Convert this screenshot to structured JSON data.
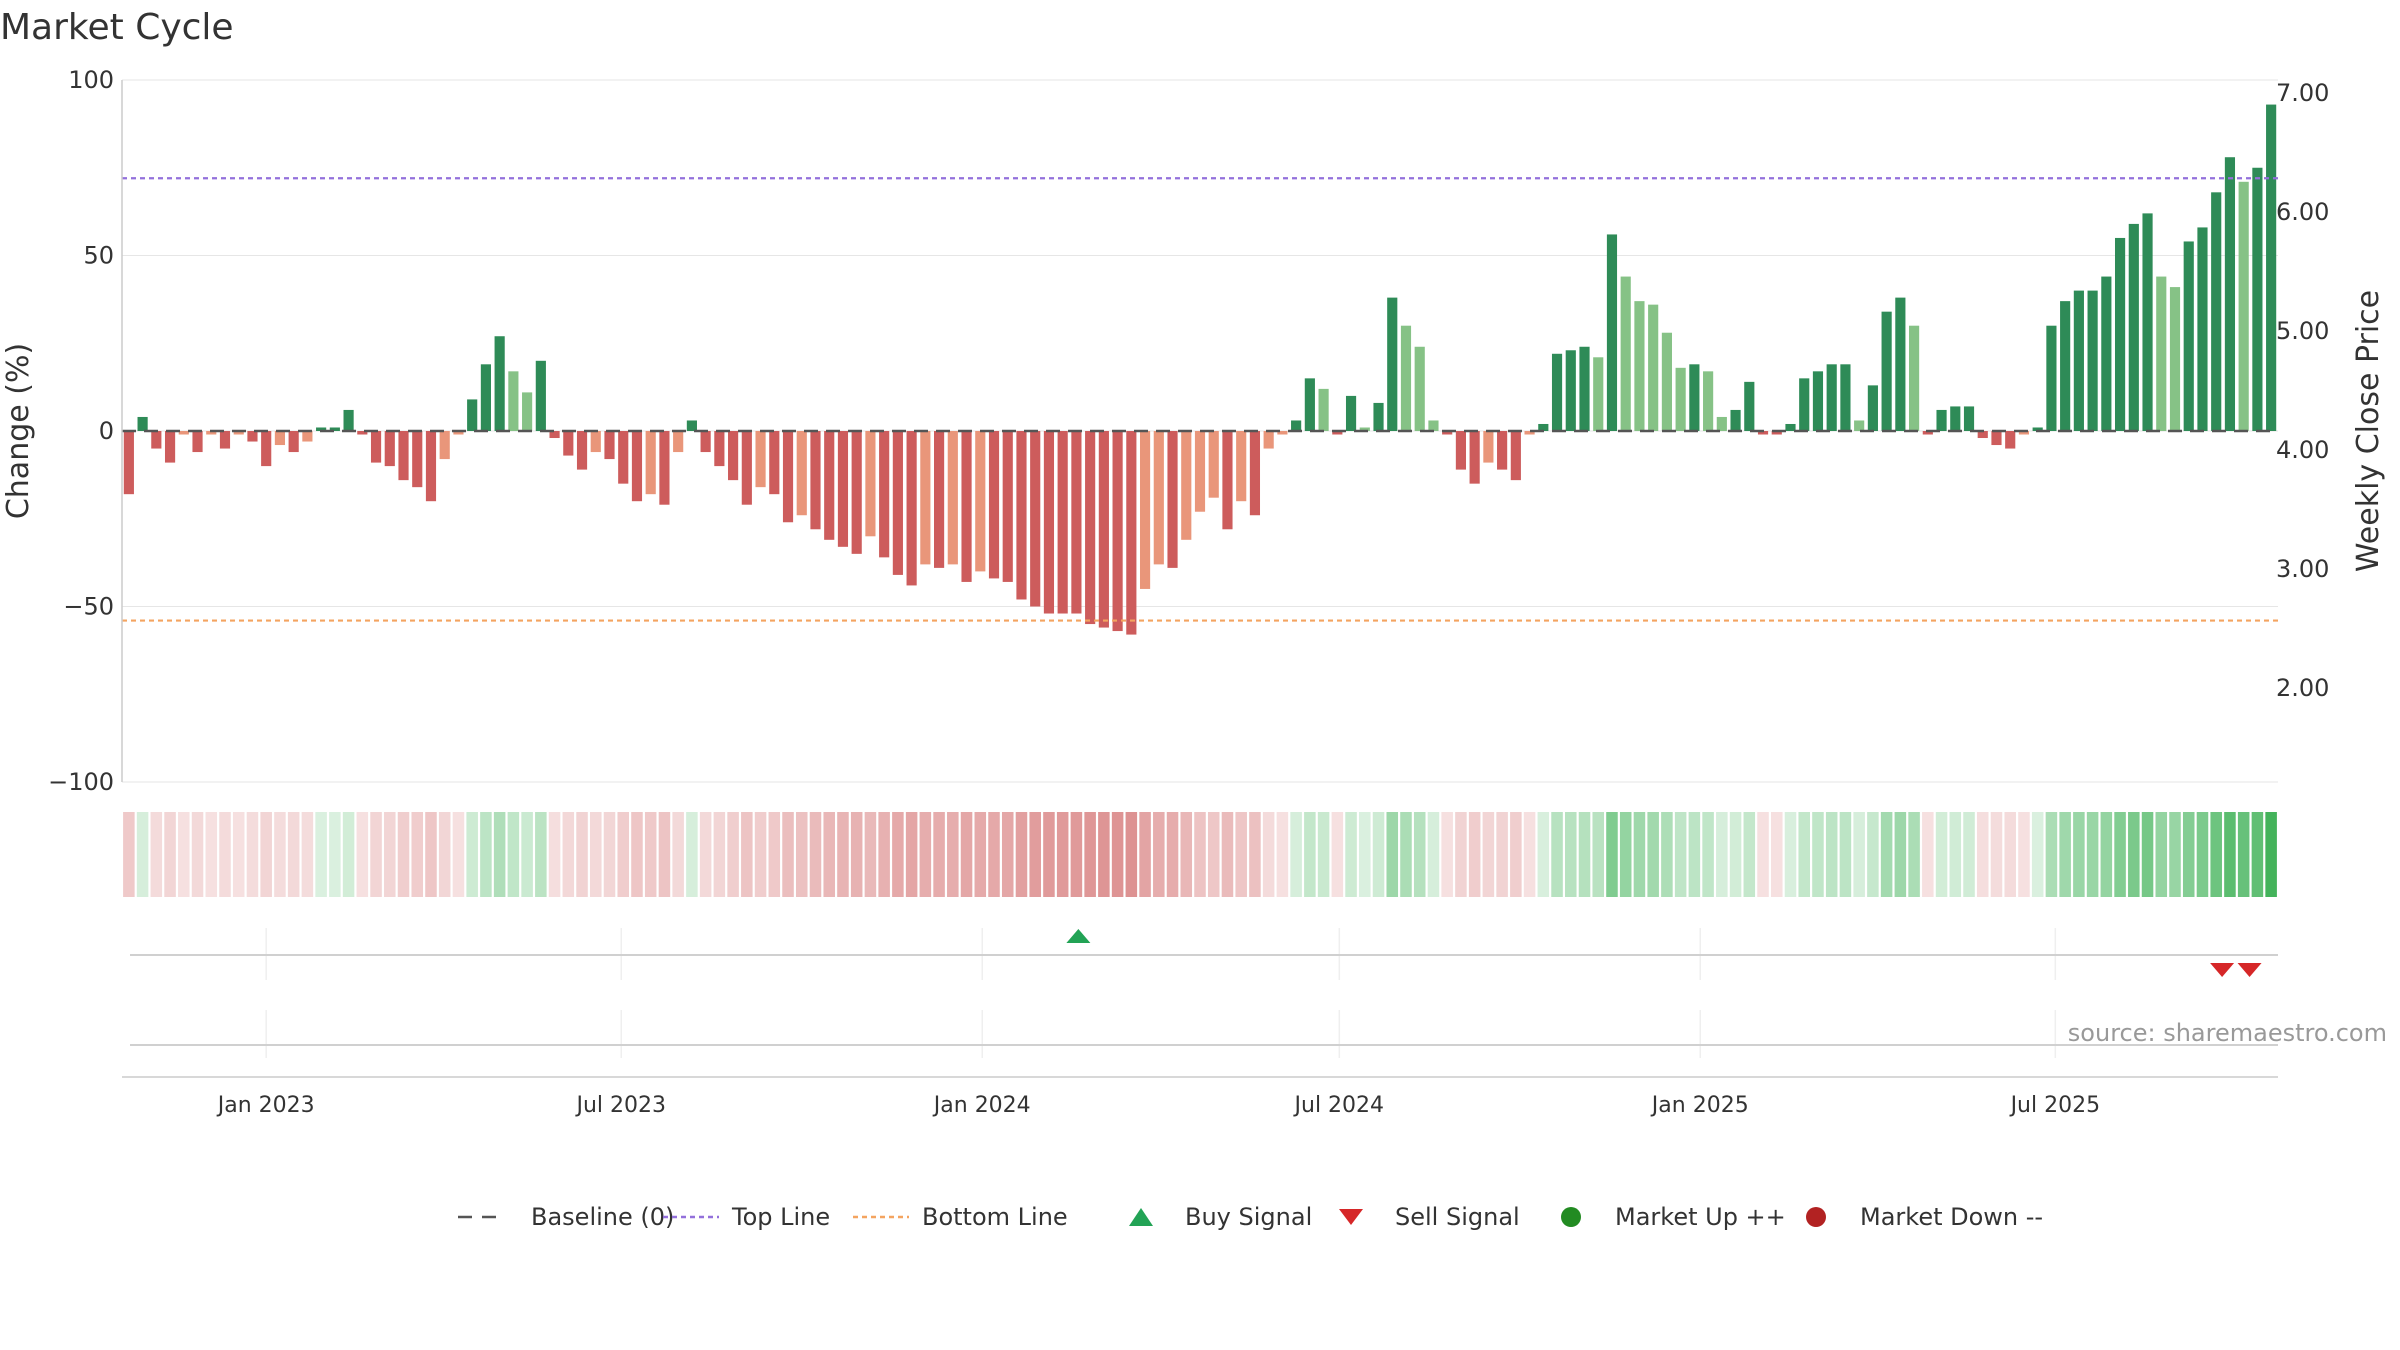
{
  "chart_data": {
    "type": "bar",
    "title": "Market Cycle",
    "ylabel": "Change (%)",
    "y2label": "Weekly Close Price",
    "ylim": [
      -100,
      100
    ],
    "y_ticks": [
      100,
      50,
      0,
      -50,
      -100
    ],
    "y_tick_labels": [
      "100",
      "50",
      "0",
      "−50",
      "−100"
    ],
    "y2lim": [
      1.2,
      7.1
    ],
    "y2_ticks": [
      7.0,
      6.0,
      5.0,
      4.0,
      3.0,
      2.0
    ],
    "y2_tick_labels": [
      "7.00",
      "6.00",
      "5.00",
      "4.00",
      "3.00",
      "2.00"
    ],
    "x_start": "2022-10-23",
    "x_end": "2025-10-19",
    "x_ticks": [
      {
        "date": "2023-01-01",
        "label": "Jan 2023"
      },
      {
        "date": "2023-07-01",
        "label": "Jul 2023"
      },
      {
        "date": "2024-01-01",
        "label": "Jan 2024"
      },
      {
        "date": "2024-07-01",
        "label": "Jul 2024"
      },
      {
        "date": "2025-01-01",
        "label": "Jan 2025"
      },
      {
        "date": "2025-07-01",
        "label": "Jul 2025"
      }
    ],
    "top_line": 72,
    "bottom_line": -54,
    "baseline": 0,
    "colors": {
      "up_strong": "#2e8b57",
      "up_weak": "#86c286",
      "down_strong": "#cd5c5c",
      "down_weak": "#e9967a",
      "top_line": "#9370db",
      "bottom_line": "#f4a460",
      "baseline": "#555555",
      "buy": "#22a355",
      "sell": "#d62728",
      "market_up": "#228b22",
      "market_down": "#b22222",
      "heat_up": "#3cb054",
      "heat_down": "#cd5c5c"
    },
    "weeks": [
      {
        "date": "2022-10-23",
        "value": -18
      },
      {
        "date": "2022-10-30",
        "value": 4
      },
      {
        "date": "2022-11-06",
        "value": -5
      },
      {
        "date": "2022-11-13",
        "value": -9
      },
      {
        "date": "2022-11-20",
        "value": -1
      },
      {
        "date": "2022-11-27",
        "value": -6
      },
      {
        "date": "2022-12-04",
        "value": -1
      },
      {
        "date": "2022-12-11",
        "value": -5
      },
      {
        "date": "2022-12-18",
        "value": -1
      },
      {
        "date": "2022-12-25",
        "value": -3
      },
      {
        "date": "2023-01-01",
        "value": -10
      },
      {
        "date": "2023-01-08",
        "value": -4
      },
      {
        "date": "2023-01-15",
        "value": -6
      },
      {
        "date": "2023-01-22",
        "value": -3
      },
      {
        "date": "2023-01-29",
        "value": 1
      },
      {
        "date": "2023-02-05",
        "value": 1
      },
      {
        "date": "2023-02-12",
        "value": 6
      },
      {
        "date": "2023-02-19",
        "value": -1
      },
      {
        "date": "2023-02-26",
        "value": -9
      },
      {
        "date": "2023-03-05",
        "value": -10
      },
      {
        "date": "2023-03-12",
        "value": -14
      },
      {
        "date": "2023-03-19",
        "value": -16
      },
      {
        "date": "2023-03-26",
        "value": -20
      },
      {
        "date": "2023-04-02",
        "value": -8
      },
      {
        "date": "2023-04-09",
        "value": -1
      },
      {
        "date": "2023-04-16",
        "value": 9
      },
      {
        "date": "2023-04-23",
        "value": 19
      },
      {
        "date": "2023-04-30",
        "value": 27
      },
      {
        "date": "2023-05-07",
        "value": 17
      },
      {
        "date": "2023-05-14",
        "value": 11
      },
      {
        "date": "2023-05-21",
        "value": 20
      },
      {
        "date": "2023-05-28",
        "value": -2
      },
      {
        "date": "2023-06-04",
        "value": -7
      },
      {
        "date": "2023-06-11",
        "value": -11
      },
      {
        "date": "2023-06-18",
        "value": -6
      },
      {
        "date": "2023-06-25",
        "value": -8
      },
      {
        "date": "2023-07-02",
        "value": -15
      },
      {
        "date": "2023-07-09",
        "value": -20
      },
      {
        "date": "2023-07-16",
        "value": -18
      },
      {
        "date": "2023-07-23",
        "value": -21
      },
      {
        "date": "2023-07-30",
        "value": -6
      },
      {
        "date": "2023-08-06",
        "value": 3
      },
      {
        "date": "2023-08-13",
        "value": -6
      },
      {
        "date": "2023-08-20",
        "value": -10
      },
      {
        "date": "2023-08-27",
        "value": -14
      },
      {
        "date": "2023-09-03",
        "value": -21
      },
      {
        "date": "2023-09-10",
        "value": -16
      },
      {
        "date": "2023-09-17",
        "value": -18
      },
      {
        "date": "2023-09-24",
        "value": -26
      },
      {
        "date": "2023-10-01",
        "value": -24
      },
      {
        "date": "2023-10-08",
        "value": -28
      },
      {
        "date": "2023-10-15",
        "value": -31
      },
      {
        "date": "2023-10-22",
        "value": -33
      },
      {
        "date": "2023-10-29",
        "value": -35
      },
      {
        "date": "2023-11-05",
        "value": -30
      },
      {
        "date": "2023-11-12",
        "value": -36
      },
      {
        "date": "2023-11-19",
        "value": -41
      },
      {
        "date": "2023-11-26",
        "value": -44
      },
      {
        "date": "2023-12-03",
        "value": -38
      },
      {
        "date": "2023-12-10",
        "value": -39
      },
      {
        "date": "2023-12-17",
        "value": -38
      },
      {
        "date": "2023-12-24",
        "value": -43
      },
      {
        "date": "2023-12-31",
        "value": -40
      },
      {
        "date": "2024-01-07",
        "value": -42
      },
      {
        "date": "2024-01-14",
        "value": -43
      },
      {
        "date": "2024-01-21",
        "value": -48
      },
      {
        "date": "2024-01-28",
        "value": -50
      },
      {
        "date": "2024-02-04",
        "value": -52
      },
      {
        "date": "2024-02-11",
        "value": -52
      },
      {
        "date": "2024-02-18",
        "value": -52
      },
      {
        "date": "2024-02-25",
        "value": -55
      },
      {
        "date": "2024-03-03",
        "value": -56
      },
      {
        "date": "2024-03-10",
        "value": -57
      },
      {
        "date": "2024-03-17",
        "value": -58
      },
      {
        "date": "2024-03-24",
        "value": -45
      },
      {
        "date": "2024-03-31",
        "value": -38
      },
      {
        "date": "2024-04-07",
        "value": -39
      },
      {
        "date": "2024-04-14",
        "value": -31
      },
      {
        "date": "2024-04-21",
        "value": -23
      },
      {
        "date": "2024-04-28",
        "value": -19
      },
      {
        "date": "2024-05-05",
        "value": -28
      },
      {
        "date": "2024-05-12",
        "value": -20
      },
      {
        "date": "2024-05-19",
        "value": -24
      },
      {
        "date": "2024-05-26",
        "value": -5
      },
      {
        "date": "2024-06-02",
        "value": -1
      },
      {
        "date": "2024-06-09",
        "value": 3
      },
      {
        "date": "2024-06-16",
        "value": 15
      },
      {
        "date": "2024-06-23",
        "value": 12
      },
      {
        "date": "2024-06-30",
        "value": -1
      },
      {
        "date": "2024-07-07",
        "value": 10
      },
      {
        "date": "2024-07-14",
        "value": 1
      },
      {
        "date": "2024-07-21",
        "value": 8
      },
      {
        "date": "2024-07-28",
        "value": 38
      },
      {
        "date": "2024-08-04",
        "value": 30
      },
      {
        "date": "2024-08-11",
        "value": 24
      },
      {
        "date": "2024-08-18",
        "value": 3
      },
      {
        "date": "2024-08-25",
        "value": -1
      },
      {
        "date": "2024-09-01",
        "value": -11
      },
      {
        "date": "2024-09-08",
        "value": -15
      },
      {
        "date": "2024-09-15",
        "value": -9
      },
      {
        "date": "2024-09-22",
        "value": -11
      },
      {
        "date": "2024-09-29",
        "value": -14
      },
      {
        "date": "2024-10-06",
        "value": -1
      },
      {
        "date": "2024-10-13",
        "value": 2
      },
      {
        "date": "2024-10-20",
        "value": 22
      },
      {
        "date": "2024-10-27",
        "value": 23
      },
      {
        "date": "2024-11-03",
        "value": 24
      },
      {
        "date": "2024-11-10",
        "value": 21
      },
      {
        "date": "2024-11-17",
        "value": 56
      },
      {
        "date": "2024-11-24",
        "value": 44
      },
      {
        "date": "2024-12-01",
        "value": 37
      },
      {
        "date": "2024-12-08",
        "value": 36
      },
      {
        "date": "2024-12-15",
        "value": 28
      },
      {
        "date": "2024-12-22",
        "value": 18
      },
      {
        "date": "2024-12-29",
        "value": 19
      },
      {
        "date": "2025-01-05",
        "value": 17
      },
      {
        "date": "2025-01-12",
        "value": 4
      },
      {
        "date": "2025-01-19",
        "value": 6
      },
      {
        "date": "2025-01-26",
        "value": 14
      },
      {
        "date": "2025-02-02",
        "value": -1
      },
      {
        "date": "2025-02-09",
        "value": -1
      },
      {
        "date": "2025-02-16",
        "value": 2
      },
      {
        "date": "2025-02-23",
        "value": 15
      },
      {
        "date": "2025-03-02",
        "value": 17
      },
      {
        "date": "2025-03-09",
        "value": 19
      },
      {
        "date": "2025-03-16",
        "value": 19
      },
      {
        "date": "2025-03-23",
        "value": 3
      },
      {
        "date": "2025-03-30",
        "value": 13
      },
      {
        "date": "2025-04-06",
        "value": 34
      },
      {
        "date": "2025-04-13",
        "value": 38
      },
      {
        "date": "2025-04-20",
        "value": 30
      },
      {
        "date": "2025-04-27",
        "value": -1
      },
      {
        "date": "2025-05-04",
        "value": 6
      },
      {
        "date": "2025-05-11",
        "value": 7
      },
      {
        "date": "2025-05-18",
        "value": 7
      },
      {
        "date": "2025-05-25",
        "value": -2
      },
      {
        "date": "2025-06-01",
        "value": -4
      },
      {
        "date": "2025-06-08",
        "value": -5
      },
      {
        "date": "2025-06-15",
        "value": -1
      },
      {
        "date": "2025-06-22",
        "value": 1
      },
      {
        "date": "2025-06-29",
        "value": 30
      },
      {
        "date": "2025-07-06",
        "value": 37
      },
      {
        "date": "2025-07-13",
        "value": 40
      },
      {
        "date": "2025-07-20",
        "value": 40
      },
      {
        "date": "2025-07-27",
        "value": 44
      },
      {
        "date": "2025-08-03",
        "value": 55
      },
      {
        "date": "2025-08-10",
        "value": 59
      },
      {
        "date": "2025-08-17",
        "value": 62
      },
      {
        "date": "2025-08-24",
        "value": 44
      },
      {
        "date": "2025-08-31",
        "value": 41
      },
      {
        "date": "2025-09-07",
        "value": 54
      },
      {
        "date": "2025-09-14",
        "value": 58
      },
      {
        "date": "2025-09-21",
        "value": 68
      },
      {
        "date": "2025-09-28",
        "value": 78
      },
      {
        "date": "2025-10-05",
        "value": 71
      },
      {
        "date": "2025-10-12",
        "value": 75
      },
      {
        "date": "2025-10-19",
        "value": 93
      }
    ],
    "buy_signals": [
      "2024-02-19"
    ],
    "sell_signals": [
      "2025-09-24",
      "2025-10-08"
    ],
    "legend_position": "bottom-center",
    "legend": [
      {
        "label": "Baseline (0)",
        "symbol": "dash"
      },
      {
        "label": "Top Line",
        "symbol": "dotted-purple"
      },
      {
        "label": "Bottom Line",
        "symbol": "dotted-orange"
      },
      {
        "label": "Buy Signal",
        "symbol": "triangle-up"
      },
      {
        "label": "Sell Signal",
        "symbol": "triangle-down"
      },
      {
        "label": "Market Up ++",
        "symbol": "circle-green"
      },
      {
        "label": "Market Down --",
        "symbol": "circle-red"
      }
    ],
    "source": "source: sharemaestro.com",
    "grid": true
  }
}
